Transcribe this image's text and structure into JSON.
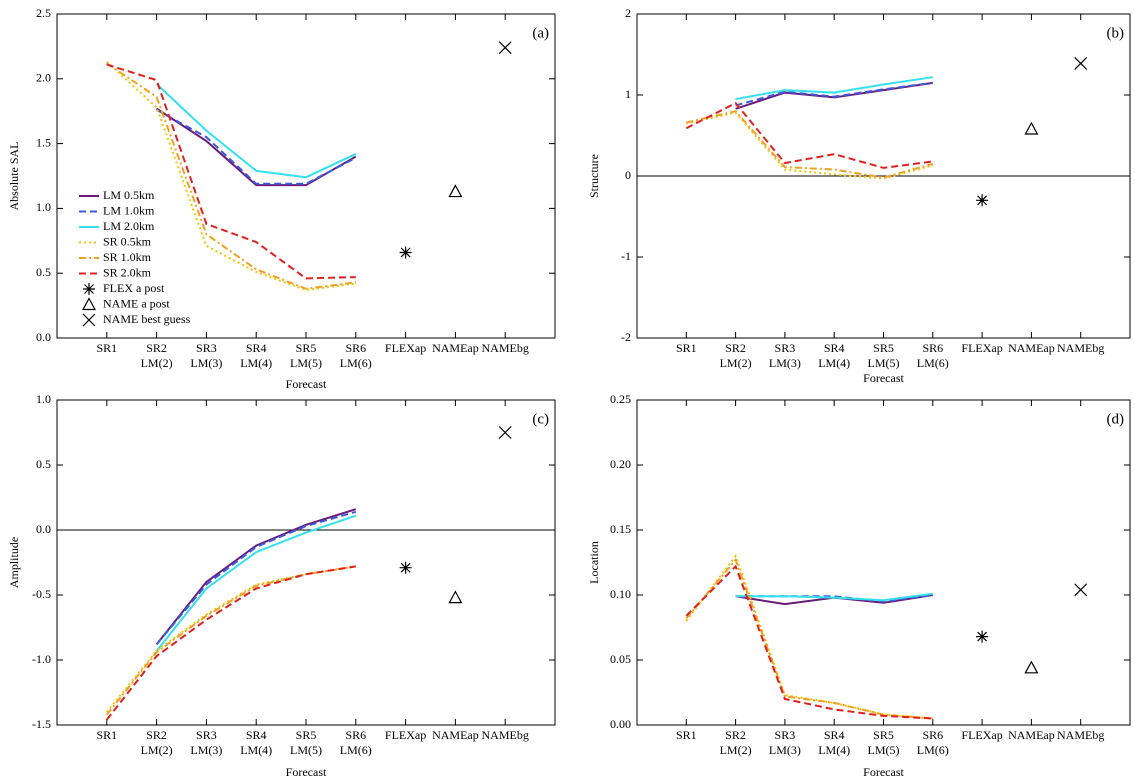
{
  "chart_data": [
    {
      "type": "line",
      "label": "(a)",
      "ylabel": "Absolute SAL",
      "xlabel": "Forecast",
      "categories": [
        [
          "SR1"
        ],
        [
          "SR2",
          "LM(2)"
        ],
        [
          "SR3",
          "LM(3)"
        ],
        [
          "SR4",
          "LM(4)"
        ],
        [
          "SR5",
          "LM(5)"
        ],
        [
          "SR6",
          "LM(6)"
        ],
        [
          "FLEXap"
        ],
        [
          "NAMEap"
        ],
        [
          "NAMEbg"
        ]
      ],
      "ylim": [
        0,
        2.5
      ],
      "yticks": [
        {
          "value": 0,
          "label": "0.0"
        },
        {
          "value": 0.5,
          "label": "0.5"
        },
        {
          "value": 1,
          "label": "1.0"
        },
        {
          "value": 1.5,
          "label": "1.5"
        },
        {
          "value": 2,
          "label": "2.0"
        },
        {
          "value": 2.5,
          "label": "2.5"
        }
      ],
      "zero_line": false,
      "legend": "left",
      "series": [
        {
          "name": "LM 0.5km",
          "color": "#6a1b7a",
          "dash": "solid",
          "values": [
            null,
            1.77,
            1.52,
            1.18,
            1.18,
            1.4,
            null,
            null,
            null
          ]
        },
        {
          "name": "LM 1.0km",
          "color": "#3a5bd9",
          "dash": "dashed",
          "values": [
            null,
            1.76,
            1.55,
            1.19,
            1.19,
            1.39,
            null,
            null,
            null
          ]
        },
        {
          "name": "LM 2.0km",
          "color": "#33e0f0",
          "dash": "solid",
          "values": [
            null,
            1.96,
            1.6,
            1.29,
            1.24,
            1.42,
            null,
            null,
            null
          ]
        },
        {
          "name": "SR 0.5km",
          "color": "#f5c400",
          "dash": "dotted",
          "values": [
            2.13,
            1.78,
            0.71,
            0.51,
            0.37,
            0.42,
            null,
            null,
            null
          ]
        },
        {
          "name": "SR 1.0km",
          "color": "#f0a020",
          "dash": "dashdot",
          "values": [
            2.12,
            1.86,
            0.8,
            0.53,
            0.38,
            0.43,
            null,
            null,
            null
          ]
        },
        {
          "name": "SR 2.0km",
          "color": "#e0201f",
          "dash": "dashed",
          "values": [
            2.11,
            1.99,
            0.88,
            0.74,
            0.46,
            0.47,
            null,
            null,
            null
          ]
        },
        {
          "name": "FLEX a post",
          "color": "#000000",
          "marker": "star",
          "values": [
            null,
            null,
            null,
            null,
            null,
            null,
            0.66,
            null,
            null
          ]
        },
        {
          "name": "NAME a post",
          "color": "#000000",
          "marker": "triangle",
          "values": [
            null,
            null,
            null,
            null,
            null,
            null,
            null,
            1.13,
            null
          ]
        },
        {
          "name": "NAME best guess",
          "color": "#000000",
          "marker": "x",
          "values": [
            null,
            null,
            null,
            null,
            null,
            null,
            null,
            null,
            2.24
          ]
        }
      ]
    },
    {
      "type": "line",
      "label": "(b)",
      "ylabel": "Structure",
      "xlabel": "Forecast",
      "categories": [
        [
          "SR1"
        ],
        [
          "SR2",
          "LM(2)"
        ],
        [
          "SR3",
          "LM(3)"
        ],
        [
          "SR4",
          "LM(4)"
        ],
        [
          "SR5",
          "LM(5)"
        ],
        [
          "SR6",
          "LM(6)"
        ],
        [
          "FLEXap"
        ],
        [
          "NAMEap"
        ],
        [
          "NAMEbg"
        ]
      ],
      "ylim": [
        -2,
        2
      ],
      "yticks": [
        -2,
        -1,
        0,
        1,
        2
      ],
      "zero_line": true,
      "series": [
        {
          "color": "#6a1b7a",
          "dash": "solid",
          "values": [
            null,
            0.83,
            1.03,
            0.97,
            1.06,
            1.15,
            null,
            null,
            null
          ]
        },
        {
          "color": "#3a5bd9",
          "dash": "dashed",
          "values": [
            null,
            0.87,
            1.04,
            0.98,
            1.07,
            1.15,
            null,
            null,
            null
          ]
        },
        {
          "color": "#33e0f0",
          "dash": "solid",
          "values": [
            null,
            0.95,
            1.06,
            1.03,
            1.13,
            1.22,
            null,
            null,
            null
          ]
        },
        {
          "color": "#f5c400",
          "dash": "dotted",
          "values": [
            0.65,
            0.78,
            0.08,
            0.02,
            -0.03,
            0.13,
            null,
            null,
            null
          ]
        },
        {
          "color": "#f0a020",
          "dash": "dashdot",
          "values": [
            0.66,
            0.8,
            0.11,
            0.08,
            -0.02,
            0.15,
            null,
            null,
            null
          ]
        },
        {
          "color": "#e0201f",
          "dash": "dashed",
          "values": [
            0.59,
            0.9,
            0.16,
            0.27,
            0.1,
            0.18,
            null,
            null,
            null
          ]
        },
        {
          "color": "#000000",
          "marker": "star",
          "values": [
            null,
            null,
            null,
            null,
            null,
            null,
            -0.3,
            null,
            null
          ]
        },
        {
          "color": "#000000",
          "marker": "triangle",
          "values": [
            null,
            null,
            null,
            null,
            null,
            null,
            null,
            0.58,
            null
          ]
        },
        {
          "color": "#000000",
          "marker": "x",
          "values": [
            null,
            null,
            null,
            null,
            null,
            null,
            null,
            null,
            1.39
          ]
        }
      ]
    },
    {
      "type": "line",
      "label": "(c)",
      "ylabel": "Amplitude",
      "xlabel": "Forecast",
      "categories": [
        [
          "SR1"
        ],
        [
          "SR2",
          "LM(2)"
        ],
        [
          "SR3",
          "LM(3)"
        ],
        [
          "SR4",
          "LM(4)"
        ],
        [
          "SR5",
          "LM(5)"
        ],
        [
          "SR6",
          "LM(6)"
        ],
        [
          "FLEXap"
        ],
        [
          "NAMEap"
        ],
        [
          "NAMEbg"
        ]
      ],
      "ylim": [
        -1.5,
        1
      ],
      "yticks": [
        {
          "value": -1.5,
          "label": "-1.5"
        },
        {
          "value": -1,
          "label": "-1.0"
        },
        {
          "value": -0.5,
          "label": "-0.5"
        },
        {
          "value": 0,
          "label": "0.0"
        },
        {
          "value": 0.5,
          "label": "0.5"
        },
        {
          "value": 1,
          "label": "1.0"
        }
      ],
      "zero_line": true,
      "series": [
        {
          "color": "#6a1b7a",
          "dash": "solid",
          "values": [
            null,
            -0.88,
            -0.4,
            -0.12,
            0.04,
            0.16,
            null,
            null,
            null
          ]
        },
        {
          "color": "#3a5bd9",
          "dash": "dashed",
          "values": [
            null,
            -0.88,
            -0.42,
            -0.13,
            0.03,
            0.14,
            null,
            null,
            null
          ]
        },
        {
          "color": "#33e0f0",
          "dash": "solid",
          "values": [
            null,
            -0.93,
            -0.45,
            -0.17,
            -0.02,
            0.11,
            null,
            null,
            null
          ]
        },
        {
          "color": "#f5c400",
          "dash": "dotted",
          "values": [
            -1.4,
            -0.93,
            -0.65,
            -0.42,
            -0.34,
            -0.28,
            null,
            null,
            null
          ]
        },
        {
          "color": "#f0a020",
          "dash": "dashdot",
          "values": [
            -1.42,
            -0.94,
            -0.66,
            -0.43,
            -0.34,
            -0.28,
            null,
            null,
            null
          ]
        },
        {
          "color": "#e0201f",
          "dash": "dashed",
          "values": [
            -1.46,
            -0.97,
            -0.69,
            -0.45,
            -0.34,
            -0.28,
            null,
            null,
            null
          ]
        },
        {
          "color": "#000000",
          "marker": "star",
          "values": [
            null,
            null,
            null,
            null,
            null,
            null,
            -0.29,
            null,
            null
          ]
        },
        {
          "color": "#000000",
          "marker": "triangle",
          "values": [
            null,
            null,
            null,
            null,
            null,
            null,
            null,
            -0.52,
            null
          ]
        },
        {
          "color": "#000000",
          "marker": "x",
          "values": [
            null,
            null,
            null,
            null,
            null,
            null,
            null,
            null,
            0.75
          ]
        }
      ]
    },
    {
      "type": "line",
      "label": "(d)",
      "ylabel": "Location",
      "xlabel": "Forecast",
      "categories": [
        [
          "SR1"
        ],
        [
          "SR2",
          "LM(2)"
        ],
        [
          "SR3",
          "LM(3)"
        ],
        [
          "SR4",
          "LM(4)"
        ],
        [
          "SR5",
          "LM(5)"
        ],
        [
          "SR6",
          "LM(6)"
        ],
        [
          "FLEXap"
        ],
        [
          "NAMEap"
        ],
        [
          "NAMEbg"
        ]
      ],
      "ylim": [
        0,
        0.25
      ],
      "yticks": [
        {
          "value": 0,
          "label": "0.00"
        },
        {
          "value": 0.05,
          "label": "0.05"
        },
        {
          "value": 0.1,
          "label": "0.10"
        },
        {
          "value": 0.15,
          "label": "0.15"
        },
        {
          "value": 0.2,
          "label": "0.20"
        },
        {
          "value": 0.25,
          "label": "0.25"
        }
      ],
      "zero_line": false,
      "series": [
        {
          "color": "#6a1b7a",
          "dash": "solid",
          "values": [
            null,
            0.099,
            0.093,
            0.098,
            0.094,
            0.1,
            null,
            null,
            null
          ]
        },
        {
          "color": "#3a5bd9",
          "dash": "dashed",
          "values": [
            null,
            0.099,
            0.099,
            0.099,
            0.095,
            0.1,
            null,
            null,
            null
          ]
        },
        {
          "color": "#33e0f0",
          "dash": "solid",
          "values": [
            null,
            0.099,
            0.099,
            0.098,
            0.096,
            0.101,
            null,
            null,
            null
          ]
        },
        {
          "color": "#f5c400",
          "dash": "dotted",
          "values": [
            0.08,
            0.13,
            0.023,
            0.017,
            0.008,
            0.005,
            null,
            null,
            null
          ]
        },
        {
          "color": "#f0a020",
          "dash": "dashdot",
          "values": [
            0.082,
            0.127,
            0.022,
            0.017,
            0.008,
            0.005,
            null,
            null,
            null
          ]
        },
        {
          "color": "#e0201f",
          "dash": "dashed",
          "values": [
            0.084,
            0.122,
            0.02,
            0.012,
            0.007,
            0.005,
            null,
            null,
            null
          ]
        },
        {
          "color": "#000000",
          "marker": "star",
          "values": [
            null,
            null,
            null,
            null,
            null,
            null,
            0.068,
            null,
            null
          ]
        },
        {
          "color": "#000000",
          "marker": "triangle",
          "values": [
            null,
            null,
            null,
            null,
            null,
            null,
            null,
            0.044,
            null
          ]
        },
        {
          "color": "#000000",
          "marker": "x",
          "values": [
            null,
            null,
            null,
            null,
            null,
            null,
            null,
            null,
            0.104
          ]
        }
      ]
    }
  ]
}
